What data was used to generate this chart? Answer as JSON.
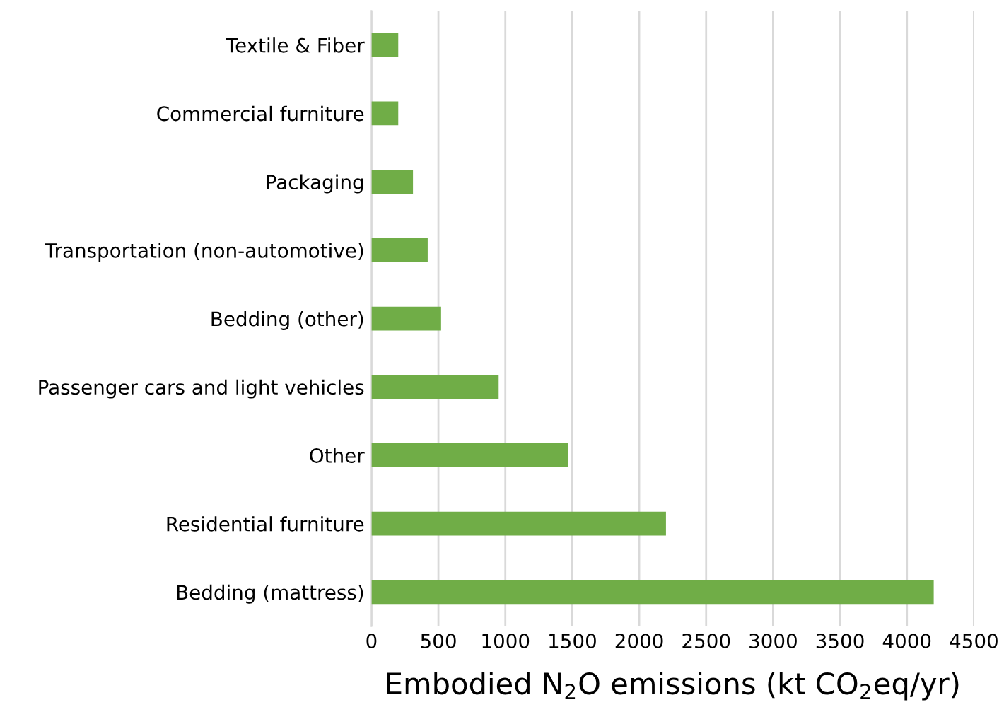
{
  "chart_data": {
    "type": "bar",
    "orientation": "horizontal",
    "categories": [
      "Textile & Fiber",
      "Commercial furniture",
      "Packaging",
      "Transportation (non-automotive)",
      "Bedding (other)",
      "Passenger cars and light vehicles",
      "Other",
      "Residential furniture",
      "Bedding (mattress)"
    ],
    "values": [
      200,
      200,
      310,
      420,
      520,
      950,
      1470,
      2200,
      4200
    ],
    "color": "#70ad47",
    "xlabel": "Embodied N$_{2}$O emissions (kt CO$_{2}$eq/yr)",
    "xlim": [
      0,
      4500
    ],
    "xticks": [
      0,
      500,
      1000,
      1500,
      2000,
      2500,
      3000,
      3500,
      4000,
      4500
    ],
    "grid": "x"
  }
}
